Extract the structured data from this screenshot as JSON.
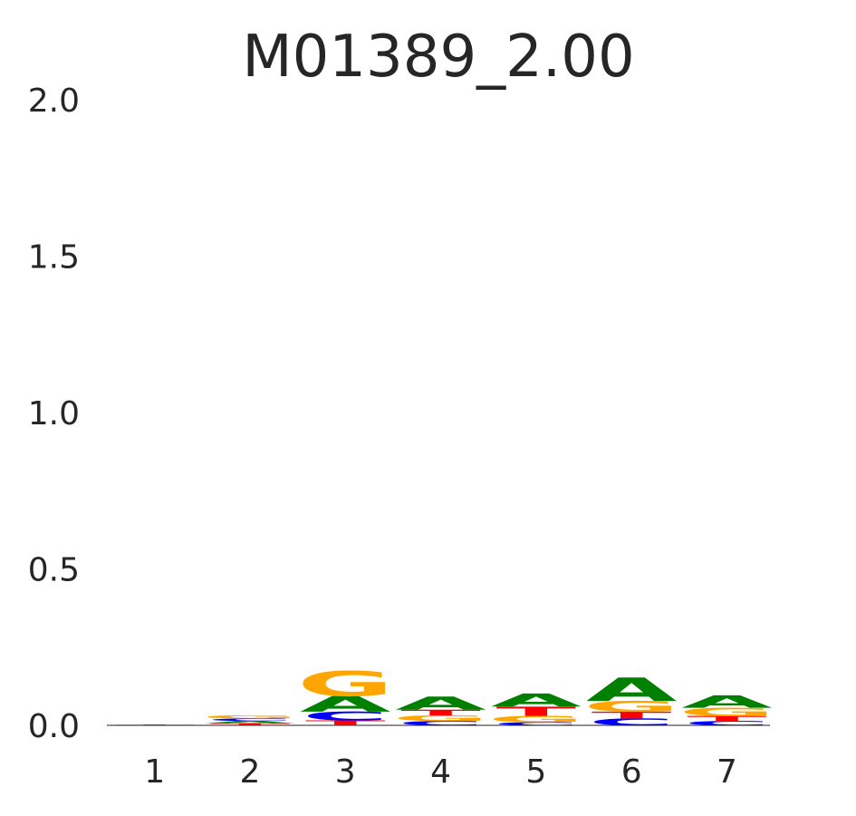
{
  "chart_data": {
    "type": "sequence-logo",
    "title": "M01389_2.00",
    "xlabel": "",
    "ylabel": "",
    "ylim": [
      0,
      2
    ],
    "y_ticks": [
      "0.0",
      "0.5",
      "1.0",
      "1.5",
      "2.0"
    ],
    "y_tick_values": [
      0,
      0.5,
      1.0,
      1.5,
      2.0
    ],
    "positions": [
      "1",
      "2",
      "3",
      "4",
      "5",
      "6",
      "7"
    ],
    "colors": {
      "A": "#008000",
      "C": "#0000ff",
      "G": "#ffa500",
      "T": "#ff0000"
    },
    "stacks": [
      [
        {
          "base": "T",
          "height": 0.003
        }
      ],
      [
        {
          "base": "T",
          "height": 0.006
        },
        {
          "base": "A",
          "height": 0.008
        },
        {
          "base": "C",
          "height": 0.008
        },
        {
          "base": "G",
          "height": 0.01
        }
      ],
      [
        {
          "base": "T",
          "height": 0.016
        },
        {
          "base": "C",
          "height": 0.028
        },
        {
          "base": "A",
          "height": 0.05
        },
        {
          "base": "G",
          "height": 0.08
        }
      ],
      [
        {
          "base": "C",
          "height": 0.014
        },
        {
          "base": "G",
          "height": 0.018
        },
        {
          "base": "T",
          "height": 0.018
        },
        {
          "base": "A",
          "height": 0.042
        }
      ],
      [
        {
          "base": "C",
          "height": 0.01
        },
        {
          "base": "G",
          "height": 0.02
        },
        {
          "base": "T",
          "height": 0.03
        },
        {
          "base": "A",
          "height": 0.042
        }
      ],
      [
        {
          "base": "C",
          "height": 0.022
        },
        {
          "base": "T",
          "height": 0.022
        },
        {
          "base": "G",
          "height": 0.034
        },
        {
          "base": "A",
          "height": 0.075
        }
      ],
      [
        {
          "base": "C",
          "height": 0.014
        },
        {
          "base": "T",
          "height": 0.016
        },
        {
          "base": "G",
          "height": 0.026
        },
        {
          "base": "A",
          "height": 0.04
        }
      ]
    ]
  }
}
